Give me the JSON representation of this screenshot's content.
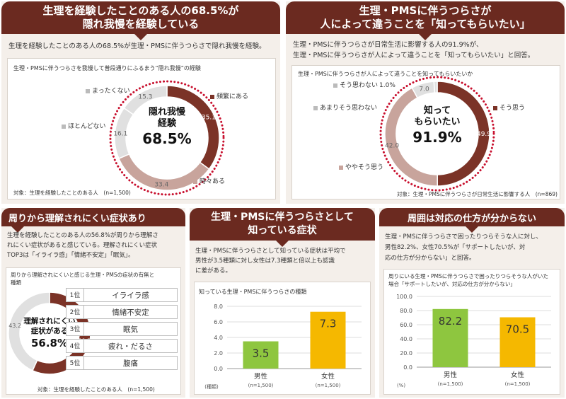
{
  "colors": {
    "banner": "#6b2a20",
    "dark_red": "#7b3327",
    "rose": "#c8a49c",
    "light_gray": "#e0e0e0",
    "green": "#8ec63f",
    "yellow": "#f5b800",
    "dots": "#c8102e"
  },
  "panel1": {
    "title_line1": "生理を経験したことのある人の68.5%が",
    "title_line2": "隠れ我慢を経験している",
    "desc": "生理を経験したことのある人の68.5%が生理・PMSに伴うつらさで隠れ我慢を経験。",
    "caption": "生理・PMSに伴うつらさを我慢して普段通りにふるまう“隠れ我慢”の経験",
    "center_line1": "隠れ我慢",
    "center_line2": "経験",
    "center_value": "68.5%",
    "note": "対象：生理を経験したことのある人　(n=1,500)"
  },
  "panel2": {
    "title_line1": "生理・PMSに伴うつらさが",
    "title_line2": "人によって違うことを「知ってもらいたい」",
    "desc_line1": "生理・PMSに伴うつらさが日常生活に影響する人の91.9%が、",
    "desc_line2": "生理・PMSに伴うつらさが人によって違うことを「知ってもらいたい」と回答。",
    "caption": "生理・PMSに伴うつらさが人によって違うことを知ってもらいたいか",
    "center_line1": "知って",
    "center_line2": "もらいたい",
    "center_value": "91.9%",
    "note": "対象：生理・PMSに伴うつらさが日常生活に影響する人　(n=869)"
  },
  "panel3": {
    "title": "周りから理解されにくい症状あり",
    "desc_line1": "生理を経験したことのある人の56.8%が周りから理解さ",
    "desc_line2": "れにくい症状があると感じている。理解されにくい症状",
    "desc_line3": "TOP3は「イライラ感」「情緒不安定」「眠気」。",
    "caption_line1": "周りから理解されにくいと感じる生理・PMSの症状の有無と",
    "caption_line2": "種類",
    "center_line1": "理解されにくい",
    "center_line2": "症状がある",
    "center_value": "56.8%",
    "ranks": [
      {
        "pos": "1位",
        "name": "イライラ感"
      },
      {
        "pos": "2位",
        "name": "情緒不安定"
      },
      {
        "pos": "3位",
        "name": "眠気"
      },
      {
        "pos": "4位",
        "name": "疲れ・だるさ"
      },
      {
        "pos": "5位",
        "name": "腹痛"
      }
    ],
    "note": "対象：生理を経験したことのある人　(n=1,500)"
  },
  "panel4": {
    "title_line1": "生理・PMSに伴うつらさとして",
    "title_line2": "知っている症状",
    "desc_line1": "生理・PMSに伴うつらさとして知っている症状は平均で",
    "desc_line2": "男性が3.5種類に対し女性は7.3種類と倍以上も認識",
    "desc_line3": "に差がある。",
    "caption": "知っている生理・PMSに伴うつらさの種類",
    "unit": "(種類)"
  },
  "panel5": {
    "title": "周囲は対応の仕方が分からない",
    "desc_line1": "生理・PMSに伴うつらさで困ったりつらそうな人に対し、",
    "desc_line2": "男性82.2%、女性70.5%が「サポートしたいが、対",
    "desc_line3": "応の仕方が分からない」と回答。",
    "caption_line1": "周りにいる生理・PMSに伴うつらさで困ったりつらそうな人がいた",
    "caption_line2": "場合「サポートしたいが、対応の仕方が分からない」",
    "unit": "(%)"
  },
  "chart_data": [
    {
      "type": "pie",
      "title": "生理・PMSに伴うつらさを我慢して普段通りにふるまう“隠れ我慢”の経験",
      "categories": [
        "頻繁にある",
        "時々ある",
        "ほとんどない",
        "まったくない"
      ],
      "values": [
        35.1,
        33.4,
        16.1,
        15.3
      ],
      "colors": [
        "#7b3327",
        "#c8a49c",
        "#e0e0e0",
        "#e0e0e0"
      ]
    },
    {
      "type": "pie",
      "title": "生理・PMSに伴うつらさが人によって違うことを知ってもらいたいか",
      "categories": [
        "そう思う",
        "ややそう思う",
        "あまりそう思わない",
        "そう思わない"
      ],
      "values": [
        49.9,
        42.0,
        7.0,
        1.0
      ],
      "value_labels": [
        "49.9",
        "42.0",
        "7.0",
        "1.0%"
      ],
      "colors": [
        "#7b3327",
        "#c8a49c",
        "#e0e0e0",
        "#e0e0e0"
      ]
    },
    {
      "type": "pie",
      "title": "周りから理解されにくいと感じる生理・PMSの症状の有無と種類",
      "categories": [
        "ある",
        "ない"
      ],
      "values": [
        56.8,
        43.2
      ],
      "colors": [
        "#7b3327",
        "#e0e0e0"
      ]
    },
    {
      "type": "bar",
      "title": "知っている生理・PMSに伴うつらさの種類",
      "categories": [
        "男性",
        "女性"
      ],
      "sublabels": [
        "(n=1,500)",
        "(n=1,500)"
      ],
      "values": [
        3.5,
        7.3
      ],
      "colors": [
        "#8ec63f",
        "#f5b800"
      ],
      "ylim": [
        0,
        8
      ],
      "yticks": [
        "0.0",
        "2.0",
        "4.0",
        "6.0",
        "8.0"
      ],
      "ylabel": "(種類)"
    },
    {
      "type": "bar",
      "title": "周りにいる生理・PMSに伴うつらさで困ったりつらそうな人がいた場合「サポートしたいが、対応の仕方が分からない」",
      "categories": [
        "男性",
        "女性"
      ],
      "sublabels": [
        "(n=1,500)",
        "(n=1,500)"
      ],
      "values": [
        82.2,
        70.5
      ],
      "colors": [
        "#8ec63f",
        "#f5b800"
      ],
      "ylim": [
        0,
        100
      ],
      "yticks": [
        "0.0",
        "20.0",
        "40.0",
        "60.0",
        "80.0",
        "100.0"
      ],
      "ylabel": "(%)"
    }
  ]
}
